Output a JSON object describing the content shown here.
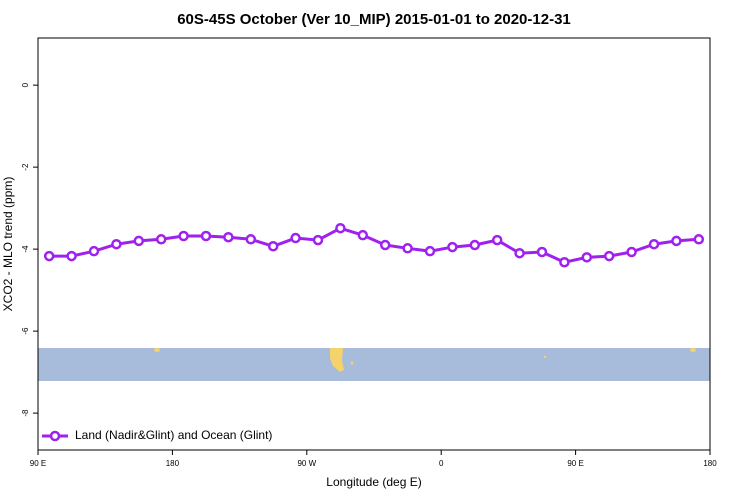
{
  "chart_data": {
    "type": "line",
    "title": "60S-45S October (Ver 10_MIP)   2015-01-01 to 2020-12-31",
    "x_label": "Longitude (deg E)",
    "y_label": "XCO2 - MLO trend (ppm)",
    "x": [
      97.5,
      112.5,
      127.5,
      142.5,
      157.5,
      172.5,
      187.5,
      202.5,
      217.5,
      232.5,
      247.5,
      262.5,
      277.5,
      292.5,
      307.5,
      322.5,
      337.5,
      352.5,
      367.5,
      382.5,
      397.5,
      412.5,
      427.5,
      442.5,
      457.5,
      472.5,
      487.5,
      502.5,
      517.5,
      532.5
    ],
    "series": [
      {
        "name": "Land (Nadir&Glint) and Ocean (Glint)",
        "color": "#a020f0",
        "values": [
          -4.17,
          -4.17,
          -4.05,
          -3.88,
          -3.8,
          -3.76,
          -3.68,
          -3.68,
          -3.71,
          -3.76,
          -3.93,
          -3.73,
          -3.78,
          -3.49,
          -3.66,
          -3.9,
          -3.98,
          -4.05,
          -3.95,
          -3.9,
          -3.78,
          -4.1,
          -4.07,
          -4.32,
          -4.2,
          -4.17,
          -4.07,
          -3.88,
          -3.8,
          -3.76
        ]
      }
    ],
    "xlim": [
      90,
      540
    ],
    "xticks": [
      {
        "value": 90,
        "label": "90 E"
      },
      {
        "value": 180,
        "label": "180"
      },
      {
        "value": 270,
        "label": "90 W"
      },
      {
        "value": 360,
        "label": "0"
      },
      {
        "value": 450,
        "label": "90 E"
      },
      {
        "value": 540,
        "label": "180"
      }
    ],
    "ylim": [
      -8.9,
      1.15
    ],
    "yticks": [
      0,
      -2,
      -4,
      -6,
      -8
    ],
    "legend": "lower left"
  }
}
